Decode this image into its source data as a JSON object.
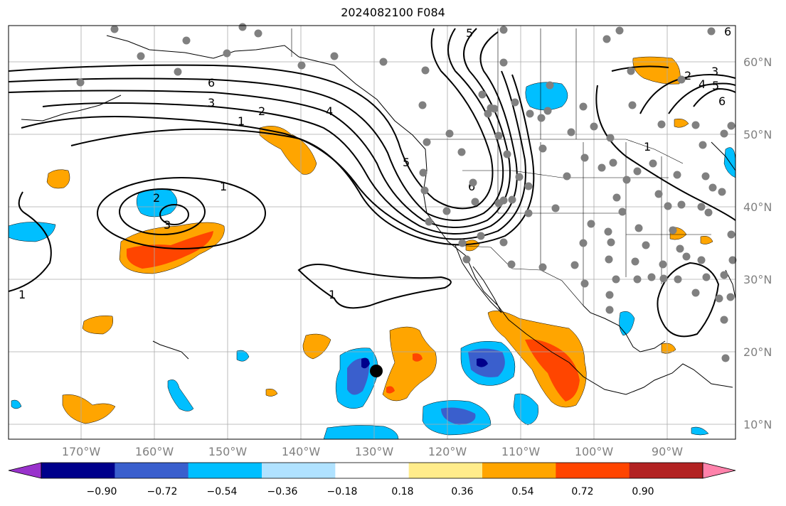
{
  "title": "2024082100 F084",
  "lat_labels": [
    "60°N",
    "50°N",
    "40°N",
    "30°N",
    "20°N",
    "10°N"
  ],
  "lon_labels": [
    "170°W",
    "160°W",
    "150°W",
    "140°W",
    "130°W",
    "120°W",
    "110°W",
    "100°W",
    "90°W"
  ],
  "colorbar": {
    "ticks": [
      "−0.90",
      "−0.72",
      "−0.54",
      "−0.36",
      "−0.18",
      "0.18",
      "0.36",
      "0.54",
      "0.72",
      "0.90"
    ],
    "colors": [
      "#9932cc",
      "#00008b",
      "#3a5fcd",
      "#00bfff",
      "#b0e2ff",
      "#ffffff",
      "#ffec8b",
      "#ffa500",
      "#ff4500",
      "#b22222",
      "#ff82ab"
    ]
  },
  "contour_labels": [
    "1",
    "2",
    "3",
    "4",
    "5",
    "6"
  ],
  "colors": {
    "contour": "#000000",
    "station_dot": "#808080",
    "marker": "#000000",
    "grid": "#aaaaaa",
    "orange": "#ffa500",
    "red_orange": "#ff4500",
    "light_blue": "#00bfff",
    "medium_blue": "#3a5fcd",
    "navy": "#00008b"
  }
}
